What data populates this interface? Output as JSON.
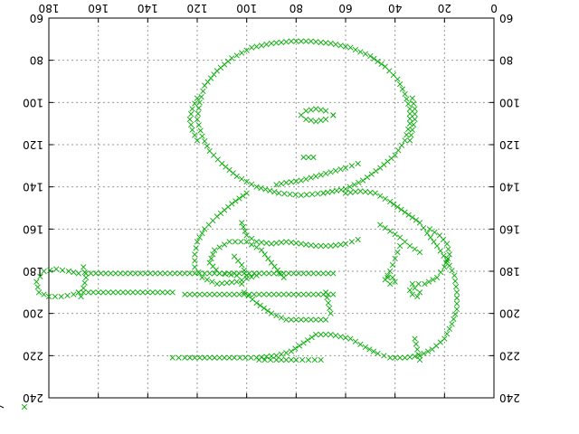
{
  "chart_data": {
    "type": "scatter",
    "title": "",
    "xlabel": "",
    "ylabel": "",
    "orientation": "rotated 180 degrees (upside-down)",
    "xlim": [
      0,
      180
    ],
    "ylim": [
      60,
      240
    ],
    "x_ticks": [
      "0",
      "20",
      "40",
      "60",
      "80",
      "100",
      "120",
      "140",
      "160",
      "180"
    ],
    "y_ticks": [
      "60",
      "80",
      "100",
      "120",
      "140",
      "160",
      "180",
      "200",
      "220",
      "240"
    ],
    "grid": true,
    "grid_style": "dotted",
    "marker": "x",
    "color": "#00aa00",
    "legend": {
      "position": "bottom-left",
      "marker": "×",
      "label": ""
    },
    "series": [
      {
        "marker": "x",
        "color": "#00aa00",
        "strokes": [
          {
            "shape": "head_outline",
            "points": [
              [
                69,
                143
              ],
              [
                78,
                144
              ],
              [
                87,
                143
              ],
              [
                96,
                140
              ],
              [
                104,
                135
              ],
              [
                110,
                129
              ],
              [
                115,
                123
              ],
              [
                118,
                116
              ],
              [
                120,
                108
              ],
              [
                119,
                100
              ],
              [
                117,
                92
              ],
              [
                112,
                85
              ],
              [
                106,
                79
              ],
              [
                98,
                74
              ],
              [
                90,
                72
              ],
              [
                82,
                71
              ],
              [
                74,
                71
              ],
              [
                66,
                72
              ],
              [
                58,
                74
              ],
              [
                50,
                78
              ],
              [
                44,
                83
              ],
              [
                39,
                89
              ],
              [
                36,
                96
              ],
              [
                34,
                103
              ],
              [
                34,
                110
              ],
              [
                36,
                118
              ],
              [
                40,
                125
              ],
              [
                46,
                131
              ],
              [
                53,
                137
              ],
              [
                60,
                141
              ],
              [
                69,
                143
              ]
            ]
          },
          {
            "shape": "left_ear",
            "points": [
              [
                34,
                118
              ],
              [
                33,
                113
              ],
              [
                32,
                108
              ],
              [
                32,
                103
              ],
              [
                33,
                98
              ]
            ]
          },
          {
            "shape": "right_ear",
            "points": [
              [
                120,
                118
              ],
              [
                122,
                113
              ],
              [
                123,
                108
              ],
              [
                122,
                103
              ],
              [
                120,
                98
              ]
            ]
          },
          {
            "shape": "mouth",
            "points": [
              [
                55,
                129
              ],
              [
                60,
                131
              ],
              [
                66,
                133
              ],
              [
                72,
                135
              ],
              [
                78,
                137
              ],
              [
                84,
                138
              ],
              [
                88,
                139
              ]
            ]
          },
          {
            "shape": "nose",
            "points": [
              [
                73,
                126
              ],
              [
                75,
                126
              ],
              [
                77,
                126
              ]
            ]
          },
          {
            "shape": "eye",
            "points": [
              [
                65,
                106
              ],
              [
                68,
                104
              ],
              [
                72,
                103
              ],
              [
                76,
                104
              ],
              [
                78,
                106
              ],
              [
                76,
                108
              ],
              [
                72,
                109
              ],
              [
                68,
                108
              ],
              [
                65,
                106
              ]
            ]
          },
          {
            "shape": "body_outline",
            "points": [
              [
                130,
                221
              ],
              [
                125,
                221
              ],
              [
                115,
                221
              ],
              [
                105,
                221
              ],
              [
                96,
                221
              ],
              [
                88,
                220
              ],
              [
                82,
                218
              ],
              [
                77,
                214
              ],
              [
                72,
                210
              ],
              [
                66,
                210
              ],
              [
                58,
                212
              ],
              [
                52,
                216
              ],
              [
                47,
                219
              ],
              [
                42,
                221
              ],
              [
                36,
                221
              ],
              [
                30,
                220
              ],
              [
                25,
                217
              ],
              [
                20,
                212
              ],
              [
                17,
                205
              ],
              [
                15,
                198
              ],
              [
                15,
                190
              ],
              [
                16,
                182
              ],
              [
                19,
                175
              ],
              [
                23,
                168
              ],
              [
                27,
                162
              ],
              [
                30,
                157
              ],
              [
                36,
                152
              ],
              [
                42,
                147
              ],
              [
                48,
                143
              ],
              [
                54,
                142
              ],
              [
                60,
                143
              ]
            ]
          },
          {
            "shape": "body_lower_right",
            "points": [
              [
                100,
                143
              ],
              [
                106,
                148
              ],
              [
                112,
                154
              ],
              [
                117,
                160
              ],
              [
                120,
                166
              ],
              [
                121,
                172
              ],
              [
                121,
                178
              ],
              [
                118,
                183
              ],
              [
                112,
                186
              ],
              [
                104,
                185
              ],
              [
                96,
                182
              ]
            ]
          },
          {
            "shape": "body_cutaway",
            "points": [
              [
                85,
                183
              ],
              [
                90,
                176
              ],
              [
                94,
                170
              ],
              [
                100,
                166
              ],
              [
                107,
                166
              ],
              [
                113,
                170
              ],
              [
                115,
                176
              ],
              [
                111,
                181
              ],
              [
                104,
                182
              ]
            ]
          },
          {
            "shape": "body_inner_line",
            "points": [
              [
                55,
                165
              ],
              [
                60,
                167
              ],
              [
                66,
                168
              ],
              [
                72,
                168
              ],
              [
                78,
                167
              ],
              [
                84,
                166
              ],
              [
                90,
                167
              ],
              [
                96,
                166
              ],
              [
                100,
                163
              ],
              [
                102,
                157
              ]
            ]
          },
          {
            "shape": "waist_curve",
            "points": [
              [
                26,
                160
              ],
              [
                22,
                163
              ],
              [
                19,
                167
              ],
              [
                18,
                172
              ],
              [
                20,
                178
              ],
              [
                23,
                183
              ],
              [
                28,
                186
              ],
              [
                33,
                186
              ]
            ]
          },
          {
            "shape": "knobs_1",
            "points": [
              [
                30,
                190
              ],
              [
                32,
                188
              ],
              [
                34,
                189
              ],
              [
                33,
                191
              ],
              [
                31,
                192
              ]
            ]
          },
          {
            "shape": "knobs_2",
            "points": [
              [
                41,
                183
              ],
              [
                43,
                182
              ],
              [
                44,
                184
              ],
              [
                42,
                186
              ],
              [
                40,
                185
              ]
            ]
          },
          {
            "shape": "knob_cluster",
            "points": [
              [
                38,
                168
              ],
              [
                39,
                171
              ],
              [
                40,
                174
              ],
              [
                41,
                177
              ],
              [
                42,
                180
              ],
              [
                43,
                183
              ]
            ]
          },
          {
            "shape": "pickguard",
            "points": [
              [
                30,
                171
              ],
              [
                34,
                168
              ],
              [
                38,
                164
              ],
              [
                42,
                161
              ],
              [
                46,
                158
              ]
            ]
          },
          {
            "shape": "neck_top",
            "points": [
              [
                130,
                190
              ],
              [
                140,
                190
              ],
              [
                150,
                190
              ],
              [
                160,
                190
              ],
              [
                168,
                190
              ]
            ]
          },
          {
            "shape": "neck_upper",
            "points": [
              [
                65,
                191
              ],
              [
                75,
                191
              ],
              [
                85,
                191
              ],
              [
                95,
                191
              ],
              [
                105,
                191
              ],
              [
                115,
                191
              ],
              [
                125,
                191
              ]
            ]
          },
          {
            "shape": "neck_lower",
            "points": [
              [
                65,
                181
              ],
              [
                75,
                181
              ],
              [
                85,
                181
              ],
              [
                95,
                181
              ],
              [
                105,
                181
              ],
              [
                115,
                181
              ],
              [
                125,
                181
              ],
              [
                135,
                181
              ],
              [
                145,
                181
              ],
              [
                155,
                181
              ],
              [
                165,
                181
              ]
            ]
          },
          {
            "shape": "headstock",
            "points": [
              [
                168,
                181
              ],
              [
                172,
                180
              ],
              [
                177,
                179
              ],
              [
                182,
                180
              ],
              [
                185,
                185
              ],
              [
                184,
                190
              ],
              [
                180,
                192
              ],
              [
                175,
                192
              ],
              [
                170,
                191
              ],
              [
                168,
                190
              ]
            ]
          },
          {
            "shape": "headstock_tip",
            "points": [
              [
                166,
                178
              ],
              [
                165,
                183
              ],
              [
                166,
                188
              ],
              [
                167,
                192
              ]
            ]
          },
          {
            "shape": "neck_bracket",
            "points": [
              [
                68,
                190
              ],
              [
                67,
                195
              ],
              [
                66,
                200
              ],
              [
                68,
                203
              ],
              [
                76,
                203
              ],
              [
                84,
                203
              ],
              [
                90,
                200
              ],
              [
                96,
                195
              ],
              [
                101,
                190
              ],
              [
                102,
                186
              ]
            ]
          },
          {
            "shape": "top_edge",
            "points": [
              [
                70,
                222
              ],
              [
                75,
                222
              ],
              [
                80,
                222
              ],
              [
                88,
                222
              ],
              [
                95,
                222
              ]
            ]
          },
          {
            "shape": "left_tip",
            "points": [
              [
                30,
                222
              ],
              [
                31,
                217
              ],
              [
                32,
                212
              ]
            ]
          },
          {
            "shape": "cutaway_mark",
            "points": [
              [
                100,
                182
              ],
              [
                102,
                177
              ],
              [
                105,
                173
              ]
            ]
          }
        ]
      }
    ]
  }
}
